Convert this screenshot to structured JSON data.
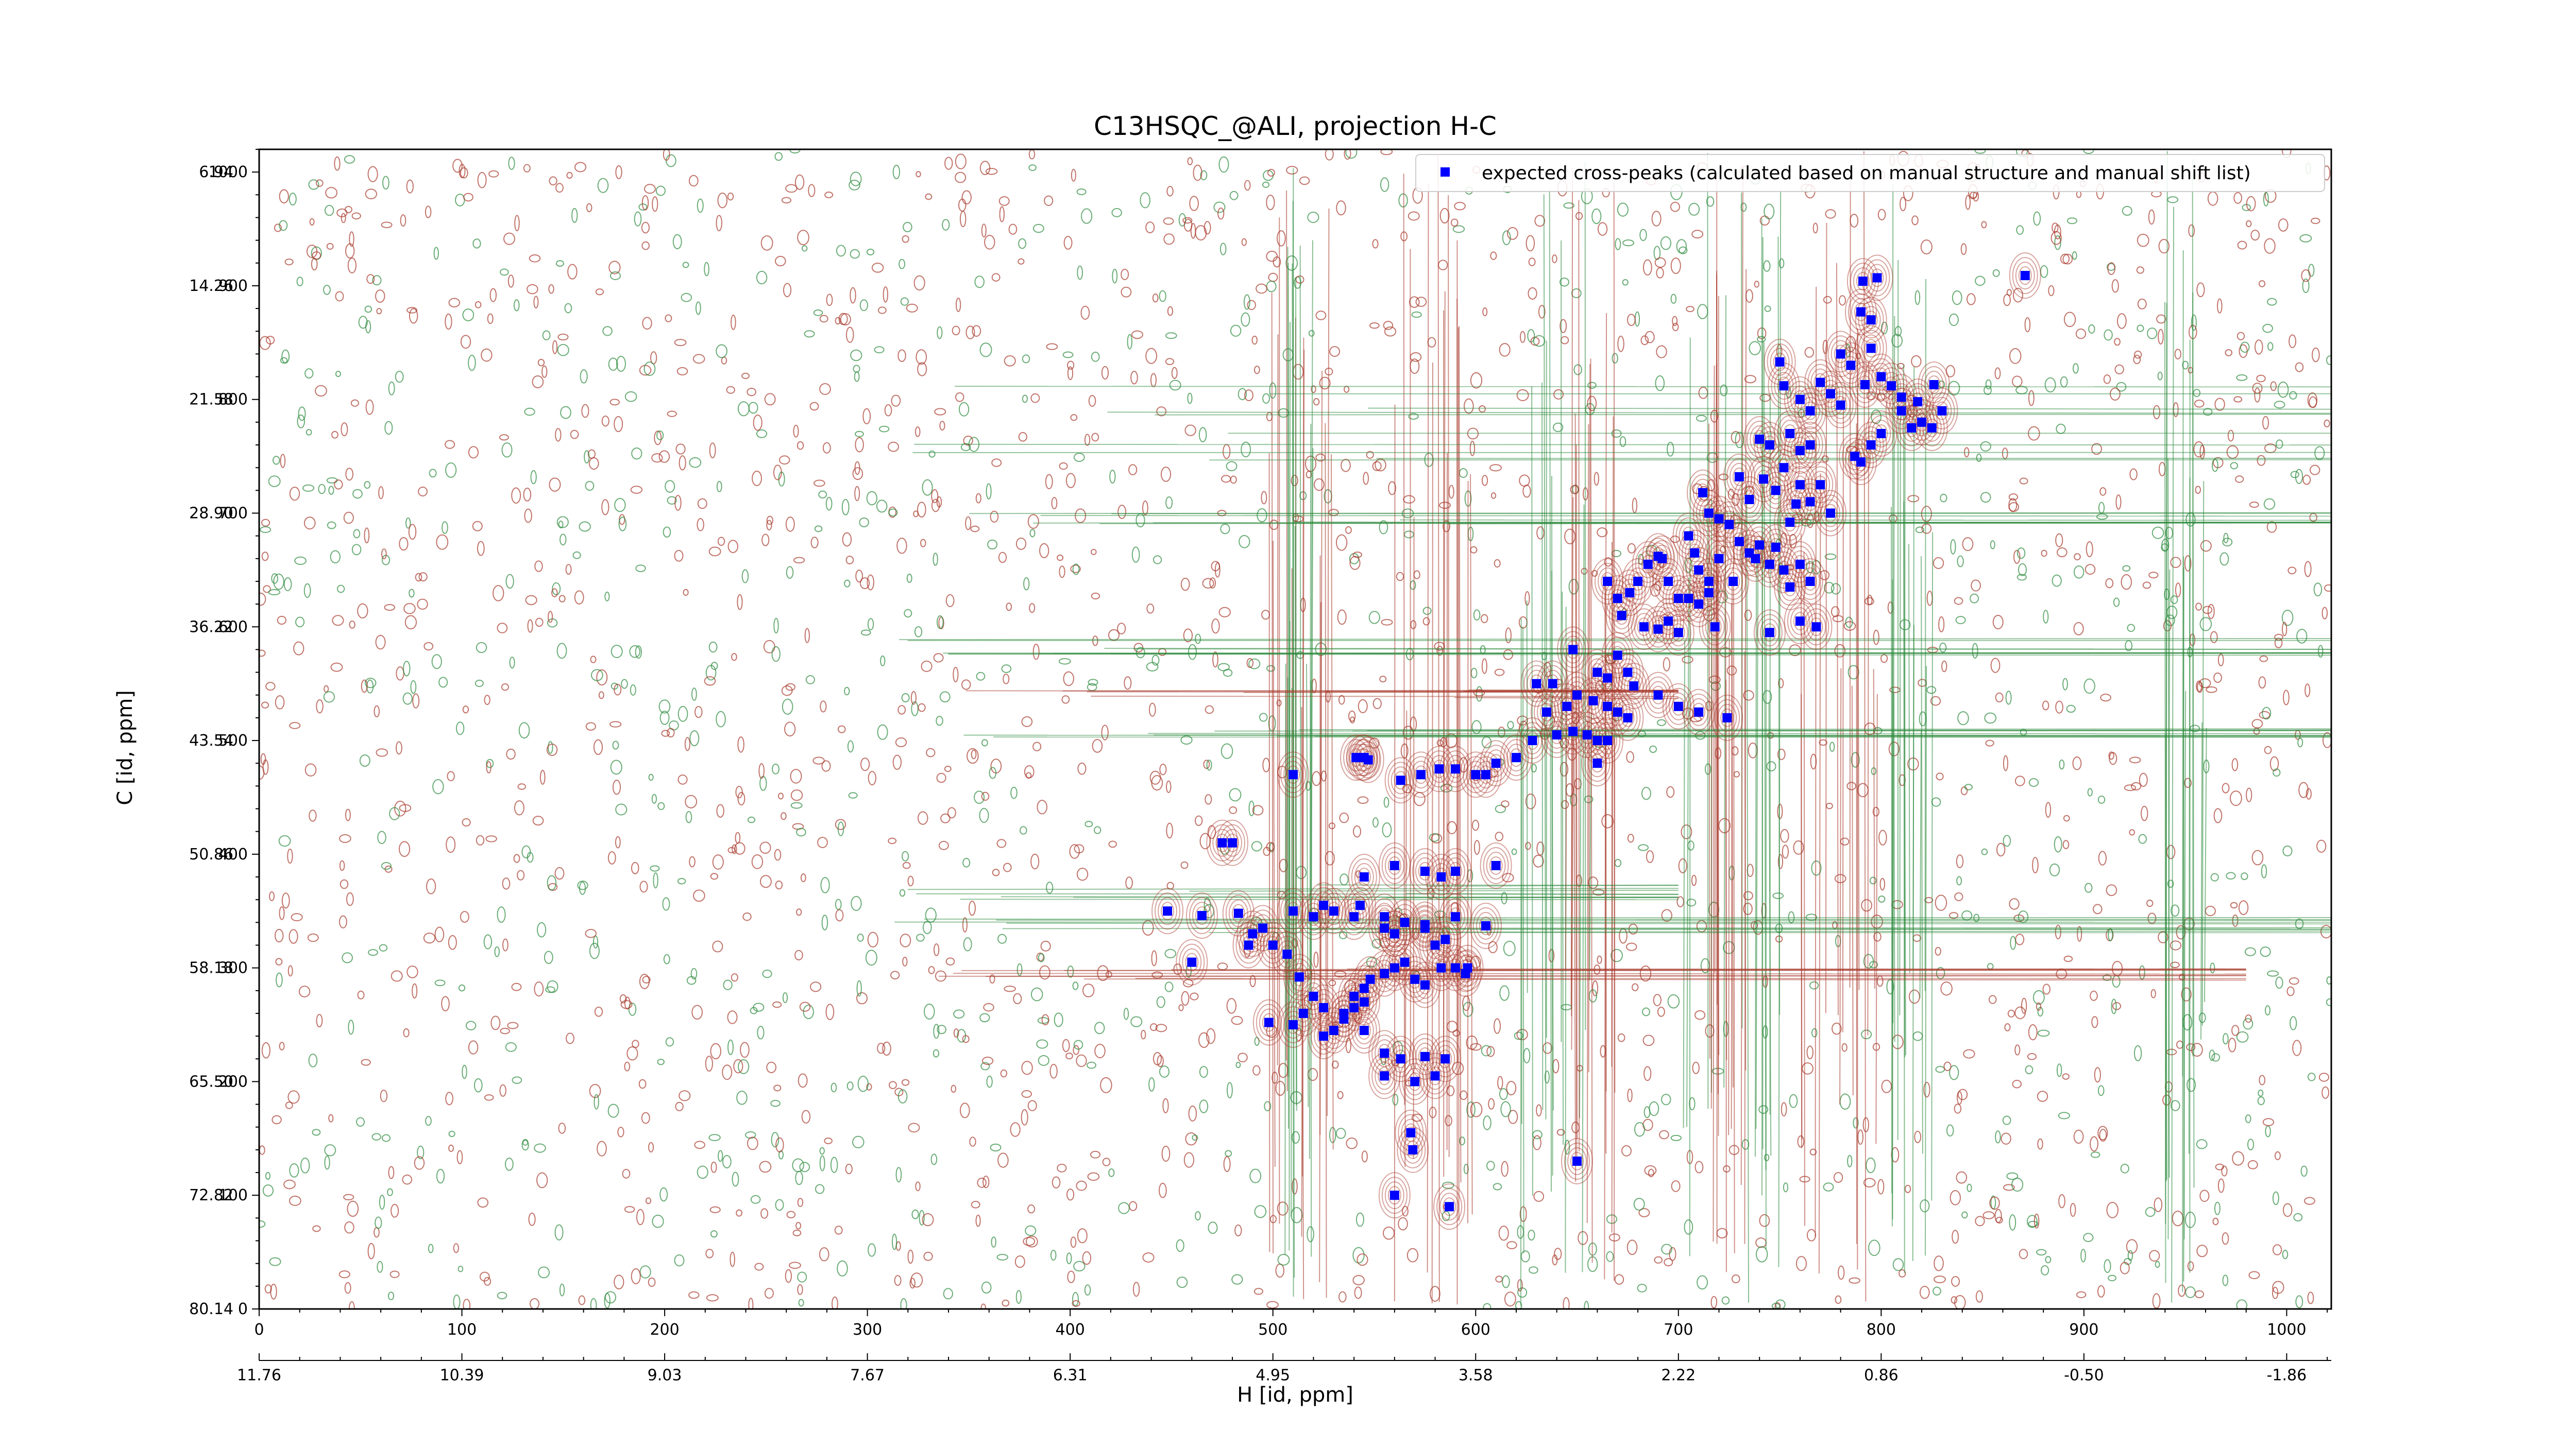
{
  "chart_data": {
    "type": "scatter",
    "title": "C13HSQC_@ALI, projection H-C",
    "xlabel": "H [id, ppm]",
    "ylabel": "C [id, ppm]",
    "x_index_ticks": [
      "0",
      "100",
      "200",
      "300",
      "400",
      "500",
      "600",
      "700",
      "800",
      "900",
      "1000"
    ],
    "x_ppm_ticks": [
      "11.76",
      "10.39",
      "9.03",
      "7.67",
      "6.31",
      "4.95",
      "3.58",
      "2.22",
      "0.86",
      "-0.50",
      "-1.86"
    ],
    "y_index_ticks": [
      "1000",
      "900",
      "800",
      "700",
      "600",
      "500",
      "400",
      "300",
      "200",
      "100",
      "0"
    ],
    "y_ppm_ticks": [
      "6.94",
      "14.26",
      "21.58",
      "28.90",
      "36.22",
      "43.54",
      "50.86",
      "58.18",
      "65.50",
      "72.82",
      "80.14"
    ],
    "xlim": [
      0,
      1022
    ],
    "ylim": [
      0,
      1020
    ],
    "legend": {
      "placement": "top-right",
      "entries": [
        {
          "label": "expected cross-peaks (calculated based on manual structure and manual shift list)",
          "color": "#0000ff",
          "marker": "square"
        }
      ]
    },
    "contour_colors": {
      "positive": "#a83a2c",
      "negative": "#2e8b3e"
    },
    "series": [
      {
        "name": "expected cross-peaks (calculated based on manual structure and manual shift list)",
        "color": "#0000ff",
        "points": [
          [
            871,
            909
          ],
          [
            791,
            904
          ],
          [
            798,
            907
          ],
          [
            750,
            833
          ],
          [
            790,
            877
          ],
          [
            795,
            870
          ],
          [
            780,
            840
          ],
          [
            785,
            830
          ],
          [
            795,
            845
          ],
          [
            800,
            820
          ],
          [
            810,
            790
          ],
          [
            818,
            798
          ],
          [
            820,
            780
          ],
          [
            752,
            812
          ],
          [
            760,
            800
          ],
          [
            765,
            790
          ],
          [
            770,
            815
          ],
          [
            775,
            805
          ],
          [
            780,
            795
          ],
          [
            792,
            813
          ],
          [
            805,
            812
          ],
          [
            810,
            802
          ],
          [
            830,
            790
          ],
          [
            826,
            813
          ],
          [
            740,
            765
          ],
          [
            745,
            760
          ],
          [
            755,
            770
          ],
          [
            760,
            755
          ],
          [
            765,
            760
          ],
          [
            787,
            750
          ],
          [
            795,
            760
          ],
          [
            800,
            770
          ],
          [
            815,
            775
          ],
          [
            825,
            775
          ],
          [
            730,
            732
          ],
          [
            735,
            712
          ],
          [
            742,
            730
          ],
          [
            748,
            720
          ],
          [
            752,
            740
          ],
          [
            760,
            725
          ],
          [
            765,
            710
          ],
          [
            770,
            725
          ],
          [
            775,
            700
          ],
          [
            755,
            692
          ],
          [
            758,
            708
          ],
          [
            712,
            718
          ],
          [
            715,
            700
          ],
          [
            720,
            695
          ],
          [
            725,
            690
          ],
          [
            730,
            675
          ],
          [
            735,
            665
          ],
          [
            740,
            672
          ],
          [
            748,
            670
          ],
          [
            752,
            650
          ],
          [
            705,
            680
          ],
          [
            708,
            665
          ],
          [
            710,
            650
          ],
          [
            715,
            640
          ],
          [
            720,
            660
          ],
          [
            727,
            640
          ],
          [
            738,
            660
          ],
          [
            745,
            655
          ],
          [
            755,
            635
          ],
          [
            760,
            655
          ],
          [
            765,
            640
          ],
          [
            692,
            660
          ],
          [
            695,
            640
          ],
          [
            700,
            625
          ],
          [
            705,
            625
          ],
          [
            710,
            620
          ],
          [
            715,
            630
          ],
          [
            685,
            655
          ],
          [
            680,
            640
          ],
          [
            676,
            630
          ],
          [
            670,
            625
          ],
          [
            665,
            640
          ],
          [
            672,
            610
          ],
          [
            683,
            600
          ],
          [
            690,
            598
          ],
          [
            695,
            605
          ],
          [
            700,
            595
          ],
          [
            718,
            600
          ],
          [
            745,
            595
          ],
          [
            760,
            605
          ],
          [
            768,
            600
          ],
          [
            790,
            745
          ],
          [
            690,
            662
          ],
          [
            648,
            580
          ],
          [
            660,
            560
          ],
          [
            665,
            555
          ],
          [
            670,
            575
          ],
          [
            675,
            560
          ],
          [
            678,
            548
          ],
          [
            690,
            540
          ],
          [
            700,
            530
          ],
          [
            710,
            525
          ],
          [
            724,
            520
          ],
          [
            650,
            540
          ],
          [
            658,
            535
          ],
          [
            665,
            530
          ],
          [
            670,
            525
          ],
          [
            675,
            520
          ],
          [
            645,
            530
          ],
          [
            635,
            525
          ],
          [
            638,
            550
          ],
          [
            630,
            550
          ],
          [
            640,
            505
          ],
          [
            648,
            508
          ],
          [
            655,
            505
          ],
          [
            660,
            500
          ],
          [
            665,
            500
          ],
          [
            660,
            480
          ],
          [
            628,
            500
          ],
          [
            620,
            485
          ],
          [
            610,
            480
          ],
          [
            605,
            470
          ],
          [
            600,
            470
          ],
          [
            590,
            475
          ],
          [
            582,
            475
          ],
          [
            573,
            470
          ],
          [
            563,
            465
          ],
          [
            547,
            483
          ],
          [
            544,
            485
          ],
          [
            541,
            485
          ],
          [
            545,
            485
          ],
          [
            510,
            470
          ],
          [
            480,
            410
          ],
          [
            475,
            410
          ],
          [
            560,
            390
          ],
          [
            575,
            385
          ],
          [
            583,
            380
          ],
          [
            590,
            385
          ],
          [
            610,
            390
          ],
          [
            545,
            380
          ],
          [
            555,
            335
          ],
          [
            575,
            335
          ],
          [
            590,
            345
          ],
          [
            605,
            337
          ],
          [
            560,
            330
          ],
          [
            448,
            350
          ],
          [
            465,
            346
          ],
          [
            483,
            348
          ],
          [
            490,
            330
          ],
          [
            495,
            335
          ],
          [
            510,
            350
          ],
          [
            520,
            345
          ],
          [
            525,
            355
          ],
          [
            530,
            350
          ],
          [
            540,
            345
          ],
          [
            543,
            355
          ],
          [
            555,
            345
          ],
          [
            560,
            330
          ],
          [
            565,
            340
          ],
          [
            575,
            338
          ],
          [
            580,
            320
          ],
          [
            585,
            325
          ],
          [
            596,
            300
          ],
          [
            460,
            305
          ],
          [
            488,
            320
          ],
          [
            500,
            320
          ],
          [
            507,
            312
          ],
          [
            513,
            292
          ],
          [
            520,
            275
          ],
          [
            525,
            265
          ],
          [
            535,
            260
          ],
          [
            540,
            275
          ],
          [
            545,
            282
          ],
          [
            548,
            290
          ],
          [
            555,
            295
          ],
          [
            560,
            300
          ],
          [
            565,
            305
          ],
          [
            570,
            290
          ],
          [
            575,
            285
          ],
          [
            583,
            300
          ],
          [
            590,
            300
          ],
          [
            595,
            295
          ],
          [
            498,
            252
          ],
          [
            510,
            250
          ],
          [
            515,
            260
          ],
          [
            525,
            240
          ],
          [
            530,
            245
          ],
          [
            535,
            255
          ],
          [
            540,
            265
          ],
          [
            545,
            270
          ],
          [
            545,
            245
          ],
          [
            555,
            225
          ],
          [
            563,
            220
          ],
          [
            575,
            222
          ],
          [
            585,
            220
          ],
          [
            580,
            205
          ],
          [
            555,
            205
          ],
          [
            570,
            200
          ],
          [
            568,
            155
          ],
          [
            569,
            140
          ],
          [
            560,
            100
          ],
          [
            587,
            90
          ],
          [
            650,
            130
          ]
        ]
      }
    ]
  }
}
